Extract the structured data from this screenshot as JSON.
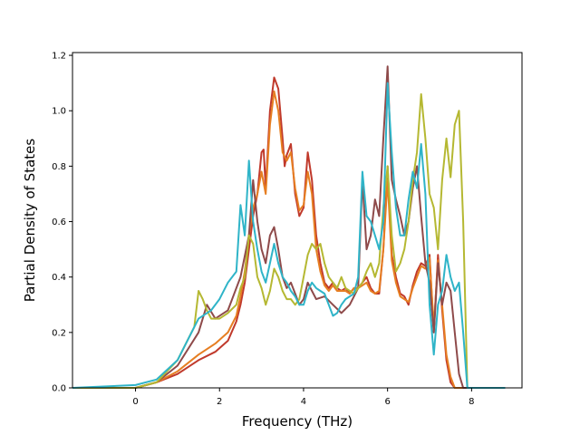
{
  "chart_data": {
    "type": "line",
    "title": "",
    "xlabel": "Frequency (THz)",
    "ylabel": "Partial Density of States",
    "xlim": [
      -1.5,
      9.2
    ],
    "ylim": [
      0.0,
      1.21
    ],
    "xticks": [
      0,
      2,
      4,
      6,
      8
    ],
    "yticks": [
      0.0,
      0.2,
      0.4,
      0.6,
      0.8,
      1.0,
      1.2
    ],
    "xtick_labels": [
      "0",
      "2",
      "4",
      "6",
      "8"
    ],
    "ytick_labels": [
      "0.0",
      "0.2",
      "0.4",
      "0.6",
      "0.8",
      "1.0",
      "1.2"
    ],
    "grid": false,
    "series": [
      {
        "color": "#c0392b",
        "x": [
          -1.5,
          0,
          0.5,
          1,
          1.5,
          1.9,
          2.2,
          2.4,
          2.5,
          2.6,
          2.7,
          2.8,
          2.9,
          3.0,
          3.05,
          3.1,
          3.2,
          3.3,
          3.4,
          3.5,
          3.55,
          3.6,
          3.7,
          3.8,
          3.9,
          4.0,
          4.1,
          4.2,
          4.3,
          4.4,
          4.5,
          4.6,
          4.7,
          4.8,
          4.9,
          5.0,
          5.1,
          5.2,
          5.3,
          5.4,
          5.5,
          5.6,
          5.7,
          5.8,
          5.9,
          6.0,
          6.1,
          6.2,
          6.3,
          6.4,
          6.5,
          6.6,
          6.7,
          6.8,
          6.9,
          7.0,
          7.1,
          7.2,
          7.3,
          7.4,
          7.5,
          7.6,
          7.7,
          7.8,
          7.9,
          8.8
        ],
        "y": [
          0,
          0,
          0.02,
          0.05,
          0.1,
          0.13,
          0.17,
          0.24,
          0.3,
          0.38,
          0.5,
          0.62,
          0.7,
          0.85,
          0.86,
          0.72,
          1.0,
          1.12,
          1.08,
          0.9,
          0.8,
          0.84,
          0.88,
          0.7,
          0.62,
          0.65,
          0.85,
          0.75,
          0.55,
          0.45,
          0.38,
          0.36,
          0.38,
          0.36,
          0.35,
          0.36,
          0.34,
          0.36,
          0.36,
          0.38,
          0.4,
          0.36,
          0.34,
          0.34,
          0.5,
          0.8,
          0.48,
          0.4,
          0.34,
          0.33,
          0.3,
          0.37,
          0.42,
          0.45,
          0.44,
          0.48,
          0.2,
          0.48,
          0.28,
          0.1,
          0.02,
          0.0,
          0.0,
          0.0,
          0.0,
          0.0
        ]
      },
      {
        "color": "#e67e22",
        "x": [
          -1.5,
          0,
          0.5,
          1,
          1.5,
          1.9,
          2.2,
          2.4,
          2.5,
          2.6,
          2.7,
          2.8,
          2.9,
          3.0,
          3.1,
          3.2,
          3.3,
          3.4,
          3.5,
          3.6,
          3.7,
          3.8,
          3.9,
          4.0,
          4.1,
          4.2,
          4.3,
          4.4,
          4.5,
          4.6,
          4.7,
          4.8,
          4.9,
          5.0,
          5.1,
          5.2,
          5.3,
          5.4,
          5.5,
          5.6,
          5.7,
          5.8,
          5.9,
          6.0,
          6.1,
          6.2,
          6.3,
          6.4,
          6.5,
          6.6,
          6.7,
          6.8,
          6.9,
          7.0,
          7.1,
          7.2,
          7.3,
          7.4,
          7.5,
          7.6,
          7.7,
          7.8,
          7.9,
          8.8
        ],
        "y": [
          0,
          0,
          0.02,
          0.06,
          0.12,
          0.16,
          0.2,
          0.26,
          0.33,
          0.42,
          0.55,
          0.65,
          0.7,
          0.78,
          0.7,
          0.95,
          1.07,
          1.0,
          0.85,
          0.82,
          0.85,
          0.72,
          0.64,
          0.66,
          0.78,
          0.7,
          0.5,
          0.42,
          0.37,
          0.35,
          0.37,
          0.35,
          0.35,
          0.35,
          0.34,
          0.36,
          0.36,
          0.37,
          0.38,
          0.35,
          0.34,
          0.35,
          0.5,
          0.75,
          0.46,
          0.38,
          0.33,
          0.32,
          0.31,
          0.36,
          0.4,
          0.44,
          0.43,
          0.47,
          0.22,
          0.46,
          0.3,
          0.12,
          0.04,
          0.0,
          0.0,
          0.0,
          0.0,
          0.0
        ]
      },
      {
        "color": "#8e4a4a",
        "x": [
          -1.5,
          0,
          0.5,
          1,
          1.5,
          1.7,
          1.9,
          2.2,
          2.5,
          2.7,
          2.8,
          2.9,
          3.0,
          3.1,
          3.2,
          3.3,
          3.4,
          3.5,
          3.6,
          3.7,
          3.8,
          3.9,
          4.0,
          4.1,
          4.2,
          4.3,
          4.5,
          4.7,
          4.9,
          5.1,
          5.3,
          5.4,
          5.5,
          5.6,
          5.7,
          5.8,
          5.9,
          6.0,
          6.1,
          6.2,
          6.3,
          6.4,
          6.5,
          6.6,
          6.7,
          6.8,
          6.9,
          7.0,
          7.1,
          7.2,
          7.3,
          7.4,
          7.5,
          7.6,
          7.7,
          7.8,
          7.9,
          8.8
        ],
        "y": [
          0,
          0,
          0.02,
          0.08,
          0.2,
          0.3,
          0.25,
          0.28,
          0.4,
          0.55,
          0.75,
          0.6,
          0.5,
          0.45,
          0.55,
          0.58,
          0.5,
          0.4,
          0.36,
          0.38,
          0.34,
          0.3,
          0.32,
          0.38,
          0.35,
          0.32,
          0.33,
          0.3,
          0.27,
          0.3,
          0.36,
          0.75,
          0.5,
          0.55,
          0.68,
          0.62,
          0.9,
          1.16,
          0.75,
          0.68,
          0.62,
          0.55,
          0.6,
          0.72,
          0.8,
          0.62,
          0.45,
          0.38,
          0.2,
          0.45,
          0.3,
          0.38,
          0.35,
          0.2,
          0.05,
          0.0,
          0.0,
          0.0
        ]
      },
      {
        "color": "#b5b832",
        "x": [
          -1.5,
          0,
          0.5,
          1,
          1.4,
          1.5,
          1.6,
          1.7,
          1.8,
          2.0,
          2.2,
          2.4,
          2.5,
          2.6,
          2.7,
          2.8,
          2.9,
          3.0,
          3.1,
          3.2,
          3.3,
          3.4,
          3.5,
          3.6,
          3.7,
          3.8,
          3.9,
          4.0,
          4.1,
          4.2,
          4.3,
          4.4,
          4.5,
          4.6,
          4.7,
          4.8,
          4.9,
          5.0,
          5.2,
          5.4,
          5.5,
          5.6,
          5.7,
          5.8,
          5.9,
          6.0,
          6.1,
          6.2,
          6.3,
          6.4,
          6.5,
          6.6,
          6.7,
          6.8,
          6.9,
          7.0,
          7.1,
          7.2,
          7.3,
          7.4,
          7.5,
          7.6,
          7.7,
          7.8,
          7.9,
          8.8
        ],
        "y": [
          0,
          0,
          0.02,
          0.1,
          0.22,
          0.35,
          0.32,
          0.28,
          0.25,
          0.25,
          0.27,
          0.3,
          0.36,
          0.4,
          0.55,
          0.52,
          0.4,
          0.36,
          0.3,
          0.35,
          0.43,
          0.4,
          0.35,
          0.32,
          0.32,
          0.3,
          0.32,
          0.4,
          0.48,
          0.52,
          0.5,
          0.52,
          0.45,
          0.4,
          0.38,
          0.36,
          0.4,
          0.36,
          0.34,
          0.38,
          0.42,
          0.45,
          0.4,
          0.45,
          0.65,
          0.8,
          0.55,
          0.42,
          0.45,
          0.5,
          0.6,
          0.75,
          0.85,
          1.06,
          0.9,
          0.7,
          0.65,
          0.5,
          0.75,
          0.9,
          0.76,
          0.95,
          1.0,
          0.6,
          0.0,
          0.0
        ]
      },
      {
        "color": "#2fb4c8",
        "x": [
          -1.5,
          0,
          0.5,
          1,
          1.5,
          1.8,
          2.0,
          2.2,
          2.4,
          2.5,
          2.6,
          2.7,
          2.8,
          2.9,
          3.0,
          3.1,
          3.2,
          3.3,
          3.4,
          3.5,
          3.6,
          3.7,
          3.8,
          3.9,
          4.0,
          4.1,
          4.2,
          4.3,
          4.4,
          4.5,
          4.6,
          4.7,
          4.8,
          4.9,
          5.0,
          5.1,
          5.2,
          5.3,
          5.4,
          5.5,
          5.6,
          5.7,
          5.8,
          5.9,
          6.0,
          6.1,
          6.2,
          6.3,
          6.4,
          6.5,
          6.6,
          6.7,
          6.8,
          6.9,
          7.0,
          7.1,
          7.2,
          7.3,
          7.4,
          7.5,
          7.6,
          7.7,
          7.8,
          7.9,
          8.8
        ],
        "y": [
          0,
          0.01,
          0.03,
          0.1,
          0.25,
          0.28,
          0.32,
          0.38,
          0.42,
          0.66,
          0.55,
          0.82,
          0.6,
          0.5,
          0.42,
          0.38,
          0.45,
          0.52,
          0.45,
          0.4,
          0.38,
          0.35,
          0.33,
          0.3,
          0.3,
          0.35,
          0.38,
          0.36,
          0.35,
          0.34,
          0.3,
          0.26,
          0.27,
          0.3,
          0.32,
          0.33,
          0.34,
          0.4,
          0.78,
          0.62,
          0.6,
          0.55,
          0.5,
          0.6,
          1.1,
          0.85,
          0.65,
          0.55,
          0.55,
          0.68,
          0.78,
          0.72,
          0.88,
          0.7,
          0.3,
          0.12,
          0.3,
          0.35,
          0.48,
          0.4,
          0.35,
          0.38,
          0.2,
          0.0,
          0.0
        ]
      }
    ]
  }
}
